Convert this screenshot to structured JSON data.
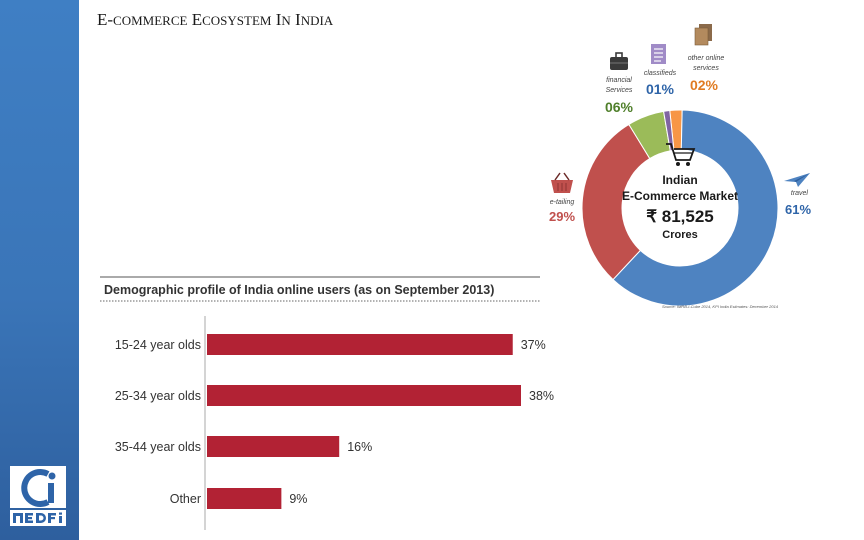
{
  "slide": {
    "title_parts": [
      "E-",
      "COMMERCE",
      " E",
      "COSYSTEM",
      " I",
      "N",
      " I",
      "NDIA"
    ]
  },
  "chart_data": [
    {
      "type": "pie",
      "center_lines": [
        "Indian",
        "E-Commerce Market",
        "₹ 81,525",
        "Crores"
      ],
      "slices": [
        {
          "name": "travel",
          "value": 61,
          "label": "61%",
          "color": "#4e83c1"
        },
        {
          "name": "e-tailing",
          "value": 29,
          "label": "29%",
          "color": "#c0504d"
        },
        {
          "name": "financial Services",
          "value": 6,
          "label": "06%",
          "color": "#9bbb59"
        },
        {
          "name": "classifieds",
          "value": 1,
          "label": "01%",
          "color": "#8064a2"
        },
        {
          "name": "other online services",
          "value": 2,
          "label": "02%",
          "color": "#f79646"
        }
      ],
      "source": "Source: IMRB-I-Cube 2014, KPI India Estimates: December 2014",
      "icons": [
        "shopping-cart-icon",
        "airplane-icon",
        "basket-icon",
        "briefcase-icon",
        "document-list-icon",
        "documents-icon"
      ]
    },
    {
      "type": "bar",
      "orientation": "horizontal",
      "title": "Demographic profile of India online users (as on September 2013)",
      "categories": [
        "15-24 year olds",
        "25-34 year olds",
        "35-44 year olds",
        "Other"
      ],
      "values": [
        37,
        38,
        16,
        9
      ],
      "value_labels": [
        "37%",
        "38%",
        "16%",
        "9%"
      ],
      "xlim": [
        0,
        38
      ],
      "bar_color": "#b22234",
      "label_color": "#333333"
    }
  ]
}
